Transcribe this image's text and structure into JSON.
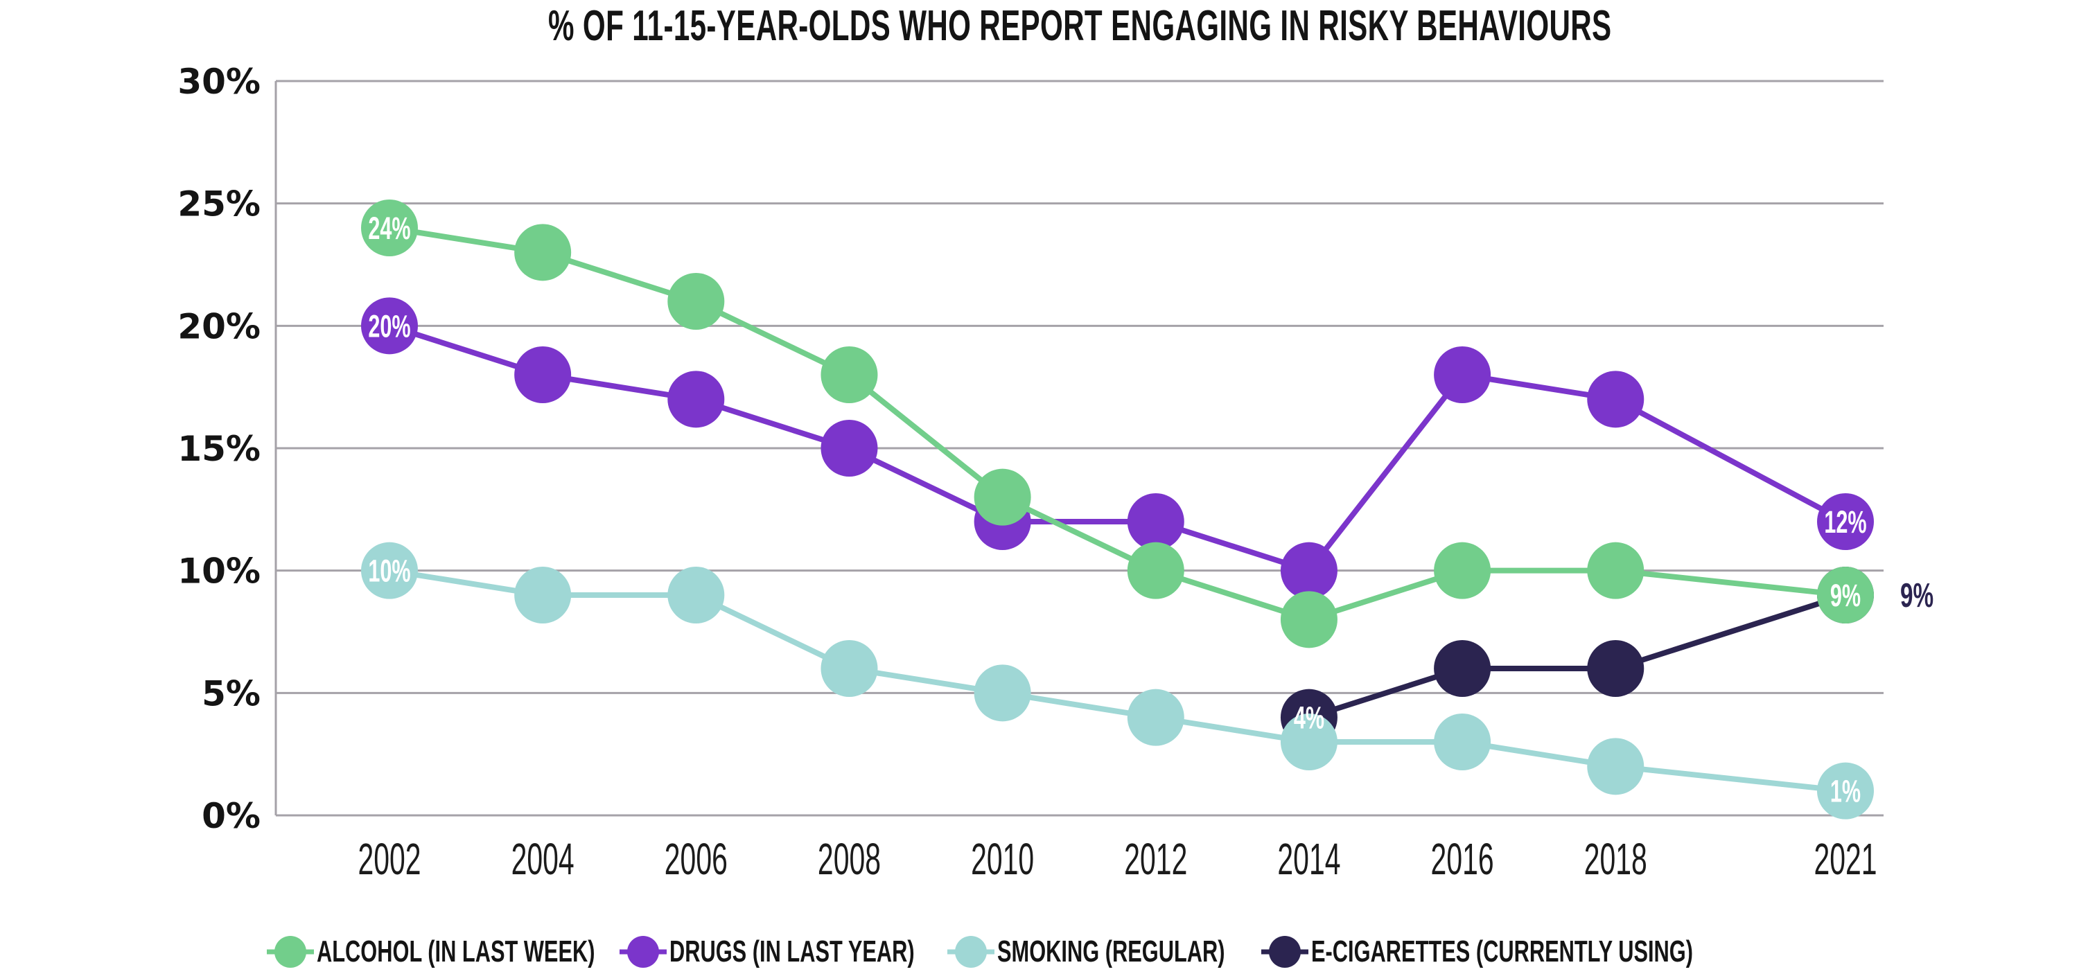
{
  "title": "% OF 11-15-YEAR-OLDS WHO REPORT ENGAGING IN RISKY BEHAVIOURS",
  "colors": {
    "background": "#ffffff",
    "grid": "#a5a2a8",
    "axis": "#a5a2a8",
    "text": "#141414",
    "point_label_text": "#ffffff",
    "outside_label_text": "#2b2450"
  },
  "legend": {
    "items": [
      {
        "label": "ALCOHOL (IN LAST WEEK)",
        "color": "#72ce8b"
      },
      {
        "label": "DRUGS (IN LAST YEAR)",
        "color": "#7b35cb"
      },
      {
        "label": "SMOKING (REGULAR)",
        "color": "#9fd7d5"
      },
      {
        "label": "E-CIGARETTES (CURRENTLY USING)",
        "color": "#2b2450"
      }
    ]
  },
  "chart_data": {
    "type": "line",
    "title": "% OF 11-15-YEAR-OLDS WHO REPORT ENGAGING IN RISKY BEHAVIOURS",
    "x": [
      2002,
      2004,
      2006,
      2008,
      2010,
      2012,
      2014,
      2016,
      2018,
      2021
    ],
    "x_tick_labels": [
      "2002",
      "2004",
      "2006",
      "2008",
      "2010",
      "2012",
      "2014",
      "2016",
      "2018",
      "2021"
    ],
    "y_ticks": [
      0,
      5,
      10,
      15,
      20,
      25,
      30
    ],
    "y_tick_labels": [
      "0%",
      "5%",
      "10%",
      "15%",
      "20%",
      "25%",
      "30%"
    ],
    "ylim": [
      0,
      30
    ],
    "xlabel": "",
    "ylabel": "",
    "grid": "horizontal",
    "legend_position": "bottom-left",
    "marker": "filled-circle",
    "series": [
      {
        "name": "ALCOHOL (IN LAST WEEK)",
        "color": "#72ce8b",
        "values": [
          24,
          23,
          21,
          18,
          13,
          10,
          8,
          10,
          10,
          9
        ],
        "point_labels": {
          "2002": "24%",
          "2021": "9%"
        }
      },
      {
        "name": "DRUGS (IN LAST YEAR)",
        "color": "#7b35cb",
        "values": [
          20,
          18,
          17,
          15,
          12,
          12,
          10,
          18,
          17,
          12
        ],
        "point_labels": {
          "2002": "20%",
          "2021": "12%"
        }
      },
      {
        "name": "SMOKING (REGULAR)",
        "color": "#9fd7d5",
        "values": [
          10,
          9,
          9,
          6,
          5,
          4,
          3,
          3,
          2,
          1
        ],
        "point_labels": {
          "2002": "10%",
          "2021": "1%"
        }
      },
      {
        "name": "E-CIGARETTES (CURRENTLY USING)",
        "color": "#2b2450",
        "values": [
          null,
          null,
          null,
          null,
          null,
          null,
          4,
          6,
          6,
          9
        ],
        "point_labels": {
          "2014": "4%"
        },
        "outside_label": {
          "year": 2021,
          "value": 9,
          "text": "9%"
        }
      }
    ]
  }
}
